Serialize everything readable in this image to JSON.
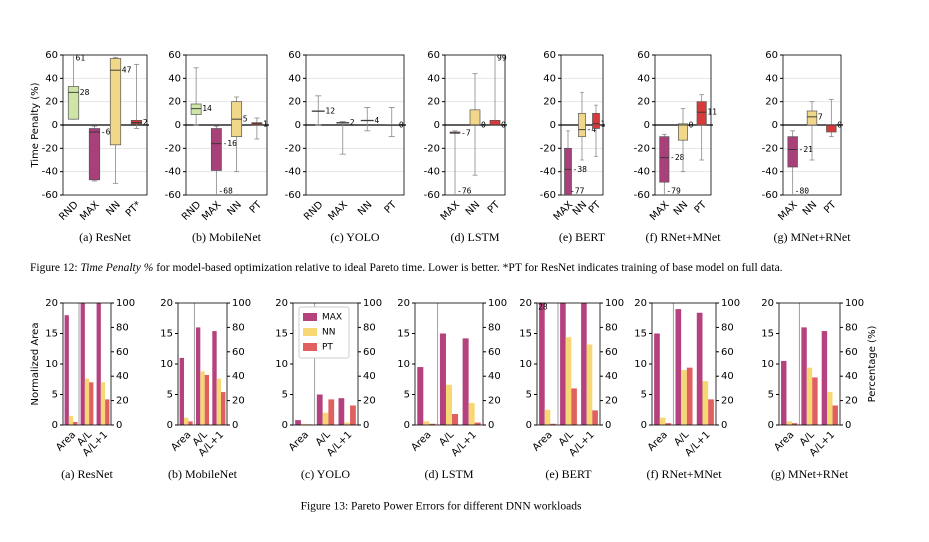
{
  "chart_data": [
    {
      "type": "box",
      "subcaption": "(a) ResNet",
      "ylabel": "Time Penalty (%)",
      "ylim": [
        -60,
        60
      ],
      "yticks": [
        -60,
        -40,
        -20,
        0,
        20,
        40,
        60
      ],
      "grid": true,
      "categories": [
        "RND",
        "MAX",
        "NN",
        "PT*"
      ],
      "colors": [
        "#cfe5a8",
        "#a8407a",
        "#f0d78a",
        "#d83a3a"
      ],
      "boxes": [
        {
          "low": 5,
          "q1": 5,
          "median": 28,
          "q3": 33,
          "high": 61
        },
        {
          "low": -48,
          "q1": -47,
          "median": -6,
          "q3": -3,
          "high": -1
        },
        {
          "low": -50,
          "q1": -17,
          "median": 47,
          "q3": 57,
          "high": 58
        },
        {
          "low": -3,
          "q1": 1,
          "median": 2,
          "q3": 4,
          "high": 52
        }
      ]
    },
    {
      "type": "box",
      "subcaption": "(b) MobileNet",
      "ylim": [
        -60,
        60
      ],
      "yticks": [
        -60,
        -40,
        -20,
        0,
        20,
        40,
        60
      ],
      "grid": true,
      "categories": [
        "RND",
        "MAX",
        "NN",
        "PT"
      ],
      "colors": [
        "#cfe5a8",
        "#a8407a",
        "#f0d78a",
        "#d83a3a"
      ],
      "boxes": [
        {
          "low": 0,
          "q1": 9,
          "median": 14,
          "q3": 18,
          "high": 49
        },
        {
          "low": -68,
          "q1": -39,
          "median": -16,
          "q3": -3,
          "high": -1
        },
        {
          "low": -40,
          "q1": -10,
          "median": 5,
          "q3": 20,
          "high": 24
        },
        {
          "low": -12,
          "q1": 0,
          "median": 1,
          "q3": 2,
          "high": 6
        }
      ]
    },
    {
      "type": "box",
      "subcaption": "(c) YOLO",
      "ylim": [
        -60,
        60
      ],
      "yticks": [
        -60,
        -40,
        -20,
        0,
        20,
        40,
        60
      ],
      "grid": true,
      "categories": [
        "RND",
        "MAX",
        "NN",
        "PT"
      ],
      "colors": [
        "#cfe5a8",
        "#a8407a",
        "#f0d78a",
        "#d83a3a"
      ],
      "boxes": [
        {
          "low": 0,
          "q1": 12,
          "median": 12,
          "q3": 12,
          "high": 25
        },
        {
          "low": -25,
          "q1": 2,
          "median": 2,
          "q3": 2,
          "high": 3
        },
        {
          "low": -5,
          "q1": 4,
          "median": 4,
          "q3": 4,
          "high": 15
        },
        {
          "low": -10,
          "q1": 0,
          "median": 0,
          "q3": 0,
          "high": 15
        }
      ]
    },
    {
      "type": "box",
      "subcaption": "(d) LSTM",
      "ylim": [
        -60,
        60
      ],
      "yticks": [
        -60,
        -40,
        -20,
        0,
        20,
        40,
        60
      ],
      "grid": true,
      "categories": [
        "MAX",
        "NN",
        "PT"
      ],
      "colors": [
        "#a8407a",
        "#f0d78a",
        "#d83a3a"
      ],
      "boxes": [
        {
          "low": -76,
          "q1": -7,
          "median": -7,
          "q3": -6,
          "high": -5
        },
        {
          "low": -43,
          "q1": 0,
          "median": 0,
          "q3": 13,
          "high": 44
        },
        {
          "low": 0,
          "q1": 0,
          "median": 0,
          "q3": 4,
          "high": 99
        }
      ]
    },
    {
      "type": "box",
      "subcaption": "(e) BERT",
      "ylim": [
        -60,
        60
      ],
      "yticks": [
        -60,
        -40,
        -20,
        0,
        20,
        40,
        60
      ],
      "grid": true,
      "categories": [
        "MAX",
        "NN",
        "PT"
      ],
      "colors": [
        "#a8407a",
        "#f0d78a",
        "#d83a3a"
      ],
      "boxes": [
        {
          "low": -77,
          "q1": -60,
          "median": -38,
          "q3": -20,
          "high": -5
        },
        {
          "low": -30,
          "q1": -10,
          "median": -4,
          "q3": 10,
          "high": 28
        },
        {
          "low": -27,
          "q1": -3,
          "median": 1,
          "q3": 10,
          "high": 17
        }
      ]
    },
    {
      "type": "box",
      "subcaption": "(f) RNet+MNet",
      "ylim": [
        -60,
        60
      ],
      "yticks": [
        -60,
        -40,
        -20,
        0,
        20,
        40,
        60
      ],
      "grid": true,
      "categories": [
        "MAX",
        "NN",
        "PT"
      ],
      "colors": [
        "#a8407a",
        "#f0d78a",
        "#d83a3a"
      ],
      "boxes": [
        {
          "low": -79,
          "q1": -49,
          "median": -28,
          "q3": -10,
          "high": -8
        },
        {
          "low": -40,
          "q1": -13,
          "median": 0,
          "q3": 1,
          "high": 14
        },
        {
          "low": -30,
          "q1": 0,
          "median": 11,
          "q3": 20,
          "high": 26
        }
      ]
    },
    {
      "type": "box",
      "subcaption": "(g) MNet+RNet",
      "ylim": [
        -60,
        60
      ],
      "yticks": [
        -60,
        -40,
        -20,
        0,
        20,
        40,
        60
      ],
      "grid": true,
      "categories": [
        "MAX",
        "NN",
        "PT"
      ],
      "colors": [
        "#a8407a",
        "#f0d78a",
        "#d83a3a"
      ],
      "boxes": [
        {
          "low": -80,
          "q1": -36,
          "median": -21,
          "q3": -10,
          "high": -5
        },
        {
          "low": -30,
          "q1": 0,
          "median": 7,
          "q3": 12,
          "high": 20
        },
        {
          "low": -10,
          "q1": -6,
          "median": 0,
          "q3": 0,
          "high": 22
        }
      ]
    },
    {
      "type": "bar",
      "subcaption": "(a) ResNet",
      "ylabel": "Normalized Area",
      "ylim": [
        0,
        20
      ],
      "yticks": [
        0,
        5,
        10,
        15,
        20
      ],
      "y2lim": [
        0,
        100
      ],
      "y2ticks": [
        0,
        20,
        40,
        60,
        80,
        100
      ],
      "categories": [
        "Area",
        "A/L",
        "A/L+1"
      ],
      "axes": [
        "y",
        "y2",
        "y2"
      ],
      "series": [
        {
          "name": "MAX",
          "color": "#b5427f",
          "values": [
            18,
            105,
            105
          ]
        },
        {
          "name": "NN",
          "color": "#f7d774",
          "values": [
            1.5,
            38,
            35
          ]
        },
        {
          "name": "PT",
          "color": "#e0605f",
          "values": [
            0.5,
            35,
            21
          ]
        }
      ]
    },
    {
      "type": "bar",
      "subcaption": "(b) MobileNet",
      "ylim": [
        0,
        20
      ],
      "yticks": [
        0,
        5,
        10,
        15,
        20
      ],
      "y2lim": [
        0,
        100
      ],
      "y2ticks": [
        0,
        20,
        40,
        60,
        80,
        100
      ],
      "categories": [
        "Area",
        "A/L",
        "A/L+1"
      ],
      "axes": [
        "y",
        "y2",
        "y2"
      ],
      "series": [
        {
          "name": "MAX",
          "color": "#b5427f",
          "values": [
            11,
            80,
            77
          ]
        },
        {
          "name": "NN",
          "color": "#f7d774",
          "values": [
            1.2,
            44,
            38
          ]
        },
        {
          "name": "PT",
          "color": "#e0605f",
          "values": [
            0.6,
            41,
            27
          ]
        }
      ]
    },
    {
      "type": "bar",
      "subcaption": "(c) YOLO",
      "ylim": [
        0,
        20
      ],
      "yticks": [
        0,
        5,
        10,
        15,
        20
      ],
      "y2lim": [
        0,
        100
      ],
      "y2ticks": [
        0,
        20,
        40,
        60,
        80,
        100
      ],
      "legend": "upper left",
      "categories": [
        "Area",
        "A/L",
        "A/L+1"
      ],
      "axes": [
        "y",
        "y2",
        "y2"
      ],
      "series": [
        {
          "name": "MAX",
          "color": "#b5427f",
          "values": [
            0.8,
            25,
            22
          ]
        },
        {
          "name": "NN",
          "color": "#f7d774",
          "values": [
            0.2,
            10,
            2
          ]
        },
        {
          "name": "PT",
          "color": "#e0605f",
          "values": [
            0.1,
            21,
            16
          ]
        }
      ]
    },
    {
      "type": "bar",
      "subcaption": "(d) LSTM",
      "ylim": [
        0,
        20
      ],
      "yticks": [
        0,
        5,
        10,
        15,
        20
      ],
      "y2lim": [
        0,
        100
      ],
      "y2ticks": [
        0,
        20,
        40,
        60,
        80,
        100
      ],
      "categories": [
        "Area",
        "A/L",
        "A/L+1"
      ],
      "axes": [
        "y",
        "y2",
        "y2"
      ],
      "series": [
        {
          "name": "MAX",
          "color": "#b5427f",
          "values": [
            9.5,
            75,
            71
          ]
        },
        {
          "name": "NN",
          "color": "#f7d774",
          "values": [
            0.6,
            33,
            18
          ]
        },
        {
          "name": "PT",
          "color": "#e0605f",
          "values": [
            0.2,
            9,
            2
          ]
        }
      ]
    },
    {
      "type": "bar",
      "subcaption": "(e) BERT",
      "ylim": [
        0,
        20
      ],
      "yticks": [
        0,
        5,
        10,
        15,
        20
      ],
      "y2lim": [
        0,
        100
      ],
      "y2ticks": [
        0,
        20,
        40,
        60,
        80,
        100
      ],
      "categories": [
        "Area",
        "A/L",
        "A/L+1"
      ],
      "axes": [
        "y",
        "y2",
        "y2"
      ],
      "series": [
        {
          "name": "MAX",
          "color": "#b5427f",
          "values": [
            28,
            105,
            105
          ],
          "value_labels": [
            "28",
            null,
            null
          ]
        },
        {
          "name": "NN",
          "color": "#f7d774",
          "values": [
            2.5,
            72,
            66
          ]
        },
        {
          "name": "PT",
          "color": "#e0605f",
          "values": [
            0.2,
            30,
            12
          ]
        }
      ]
    },
    {
      "type": "bar",
      "subcaption": "(f) RNet+MNet",
      "ylim": [
        0,
        20
      ],
      "yticks": [
        0,
        5,
        10,
        15,
        20
      ],
      "y2lim": [
        0,
        100
      ],
      "y2ticks": [
        0,
        20,
        40,
        60,
        80,
        100
      ],
      "categories": [
        "Area",
        "A/L",
        "A/L+1"
      ],
      "axes": [
        "y",
        "y2",
        "y2"
      ],
      "series": [
        {
          "name": "MAX",
          "color": "#b5427f",
          "values": [
            15,
            95,
            92
          ]
        },
        {
          "name": "NN",
          "color": "#f7d774",
          "values": [
            1.2,
            45,
            36
          ]
        },
        {
          "name": "PT",
          "color": "#e0605f",
          "values": [
            0.3,
            47,
            21
          ]
        }
      ]
    },
    {
      "type": "bar",
      "subcaption": "(g) MNet+RNet",
      "y2label": "Percentage (%)",
      "ylim": [
        0,
        20
      ],
      "yticks": [
        0,
        5,
        10,
        15,
        20
      ],
      "y2lim": [
        0,
        100
      ],
      "y2ticks": [
        0,
        20,
        40,
        60,
        80,
        100
      ],
      "categories": [
        "Area",
        "A/L",
        "A/L+1"
      ],
      "axes": [
        "y",
        "y2",
        "y2"
      ],
      "series": [
        {
          "name": "MAX",
          "color": "#b5427f",
          "values": [
            10.5,
            80,
            77
          ]
        },
        {
          "name": "NN",
          "color": "#f7d774",
          "values": [
            0.6,
            47,
            27
          ]
        },
        {
          "name": "PT",
          "color": "#e0605f",
          "values": [
            0.3,
            39,
            16
          ]
        }
      ]
    }
  ],
  "figure12_caption": {
    "label": "Figure 12:",
    "emphasis": "Time Penalty %",
    "text": "for model-based optimization relative to ideal Pareto time. Lower is better. *PT for ResNet indicates training of base model on full data."
  },
  "figure13_caption": "Figure 13: Pareto Power Errors for different DNN workloads"
}
